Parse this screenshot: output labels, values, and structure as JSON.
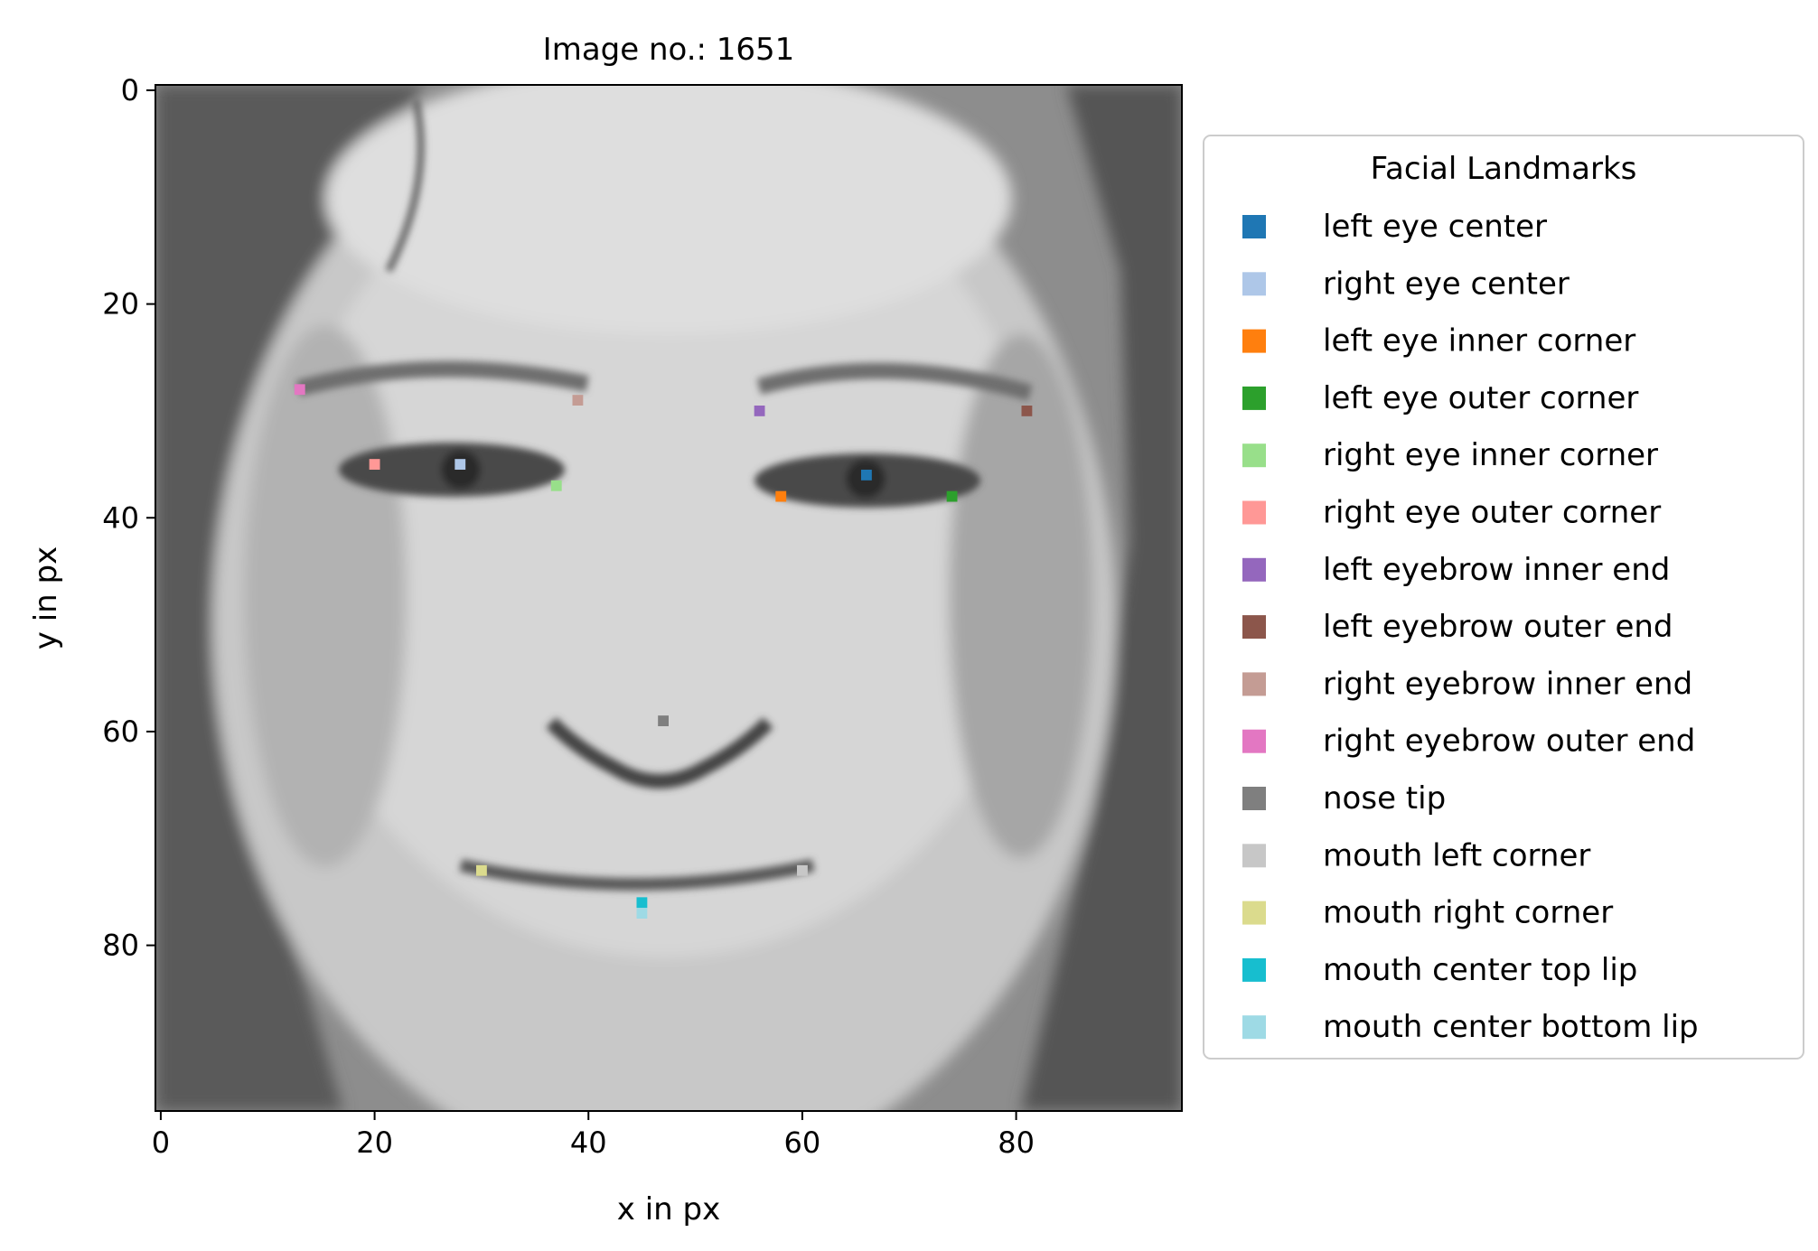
{
  "chart_data": {
    "type": "scatter",
    "title": "Image no.: 1651",
    "xlabel": "x in px",
    "ylabel": "y in px",
    "xlim": [
      -0.5,
      95.5
    ],
    "ylim": [
      95.5,
      -0.5
    ],
    "xticks": [
      0,
      20,
      40,
      60,
      80
    ],
    "yticks": [
      0,
      20,
      40,
      60,
      80
    ],
    "grid": false,
    "legend_title": "Facial Landmarks",
    "legend_position": "outside-right",
    "series": [
      {
        "name": "left eye center",
        "color": "#1f77b4",
        "x": 66,
        "y": 36
      },
      {
        "name": "right eye center",
        "color": "#aec7e8",
        "x": 28,
        "y": 35
      },
      {
        "name": "left eye inner corner",
        "color": "#ff7f0e",
        "x": 58,
        "y": 38
      },
      {
        "name": "left eye outer corner",
        "color": "#2ca02c",
        "x": 74,
        "y": 38
      },
      {
        "name": "right eye inner corner",
        "color": "#98df8a",
        "x": 37,
        "y": 37
      },
      {
        "name": "right eye outer corner",
        "color": "#ff9896",
        "x": 20,
        "y": 35
      },
      {
        "name": "left eyebrow inner end",
        "color": "#9467bd",
        "x": 56,
        "y": 30
      },
      {
        "name": "left eyebrow outer end",
        "color": "#8c564b",
        "x": 81,
        "y": 30
      },
      {
        "name": "right eyebrow inner end",
        "color": "#c49c94",
        "x": 39,
        "y": 29
      },
      {
        "name": "right eyebrow outer end",
        "color": "#e377c2",
        "x": 13,
        "y": 28
      },
      {
        "name": "nose tip",
        "color": "#7f7f7f",
        "x": 47,
        "y": 59
      },
      {
        "name": "mouth left corner",
        "color": "#c7c7c7",
        "x": 60,
        "y": 73
      },
      {
        "name": "mouth right corner",
        "color": "#dbdb8d",
        "x": 30,
        "y": 73
      },
      {
        "name": "mouth center top lip",
        "color": "#17becf",
        "x": 45,
        "y": 76
      },
      {
        "name": "mouth center bottom lip",
        "color": "#9edae5",
        "x": 45,
        "y": 77
      }
    ]
  }
}
